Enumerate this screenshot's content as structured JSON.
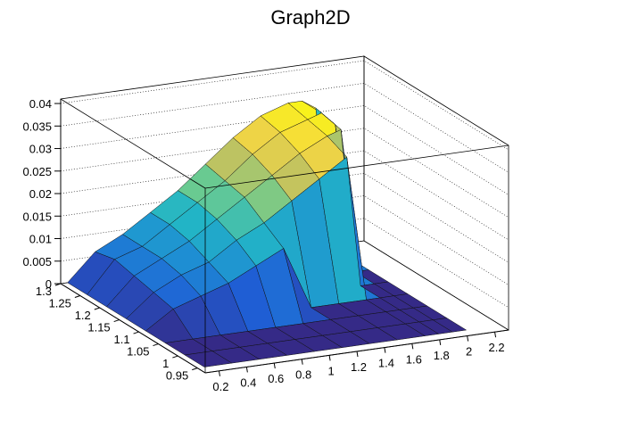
{
  "chart_data": {
    "type": "surface",
    "title": "Graph2D",
    "x_ticks": [
      "0.2",
      "0.4",
      "0.6",
      "0.8",
      "1",
      "1.2",
      "1.4",
      "1.6",
      "1.8",
      "2",
      "2.2"
    ],
    "y_ticks": [
      "0.95",
      "1",
      "1.05",
      "1.1",
      "1.15",
      "1.2",
      "1.25",
      "1.3"
    ],
    "z_ticks": [
      "0",
      "0.005",
      "0.01",
      "0.015",
      "0.02",
      "0.025",
      "0.03",
      "0.035",
      "0.04"
    ],
    "xlim": [
      0.1,
      2.3
    ],
    "ylim": [
      0.93,
      1.3
    ],
    "zlim": [
      0,
      0.041
    ],
    "grid": true,
    "colormap": [
      "#352a87",
      "#1f5fd6",
      "#1e8ed3",
      "#22b5c6",
      "#6ccb8f",
      "#c2c35f",
      "#f5d742",
      "#f9fb0e"
    ],
    "surface_x": [
      0.15,
      0.35,
      0.55,
      0.75,
      0.95,
      1.15,
      1.35,
      1.55,
      1.75,
      1.85,
      1.95,
      2.05
    ],
    "surface_y": [
      0.95,
      1.0,
      1.05,
      1.1,
      1.15,
      1.2,
      1.25,
      1.3
    ],
    "surface_z": [
      [
        0.0,
        0.0,
        0.0,
        0.0,
        0.0,
        0.0,
        0.0,
        0.0,
        0.0,
        0.0,
        0.0,
        0.0
      ],
      [
        0.0,
        0.0,
        0.0,
        0.0,
        0.0,
        0.0,
        0.0,
        0.0,
        0.0,
        0.0,
        0.0,
        0.0
      ],
      [
        0.0,
        0.0,
        0.0,
        0.0,
        0.0,
        0.0,
        0.0,
        0.0,
        0.0,
        0.0,
        0.0,
        0.0
      ],
      [
        0.0,
        0.004,
        0.006,
        0.008,
        0.011,
        0.014,
        0.0,
        0.0,
        0.0,
        0.0,
        0.0,
        0.0
      ],
      [
        0.0,
        0.005,
        0.008,
        0.01,
        0.014,
        0.017,
        0.021,
        0.025,
        0.029,
        0.0,
        0.0,
        0.0
      ],
      [
        0.0,
        0.006,
        0.009,
        0.012,
        0.016,
        0.02,
        0.024,
        0.028,
        0.031,
        0.032,
        0.0,
        0.0
      ],
      [
        0.0,
        0.007,
        0.009,
        0.013,
        0.017,
        0.021,
        0.026,
        0.03,
        0.032,
        0.033,
        0.03,
        0.0
      ],
      [
        0.0,
        0.006,
        0.009,
        0.013,
        0.017,
        0.022,
        0.027,
        0.031,
        0.033,
        0.033,
        0.031,
        0.0
      ]
    ]
  }
}
